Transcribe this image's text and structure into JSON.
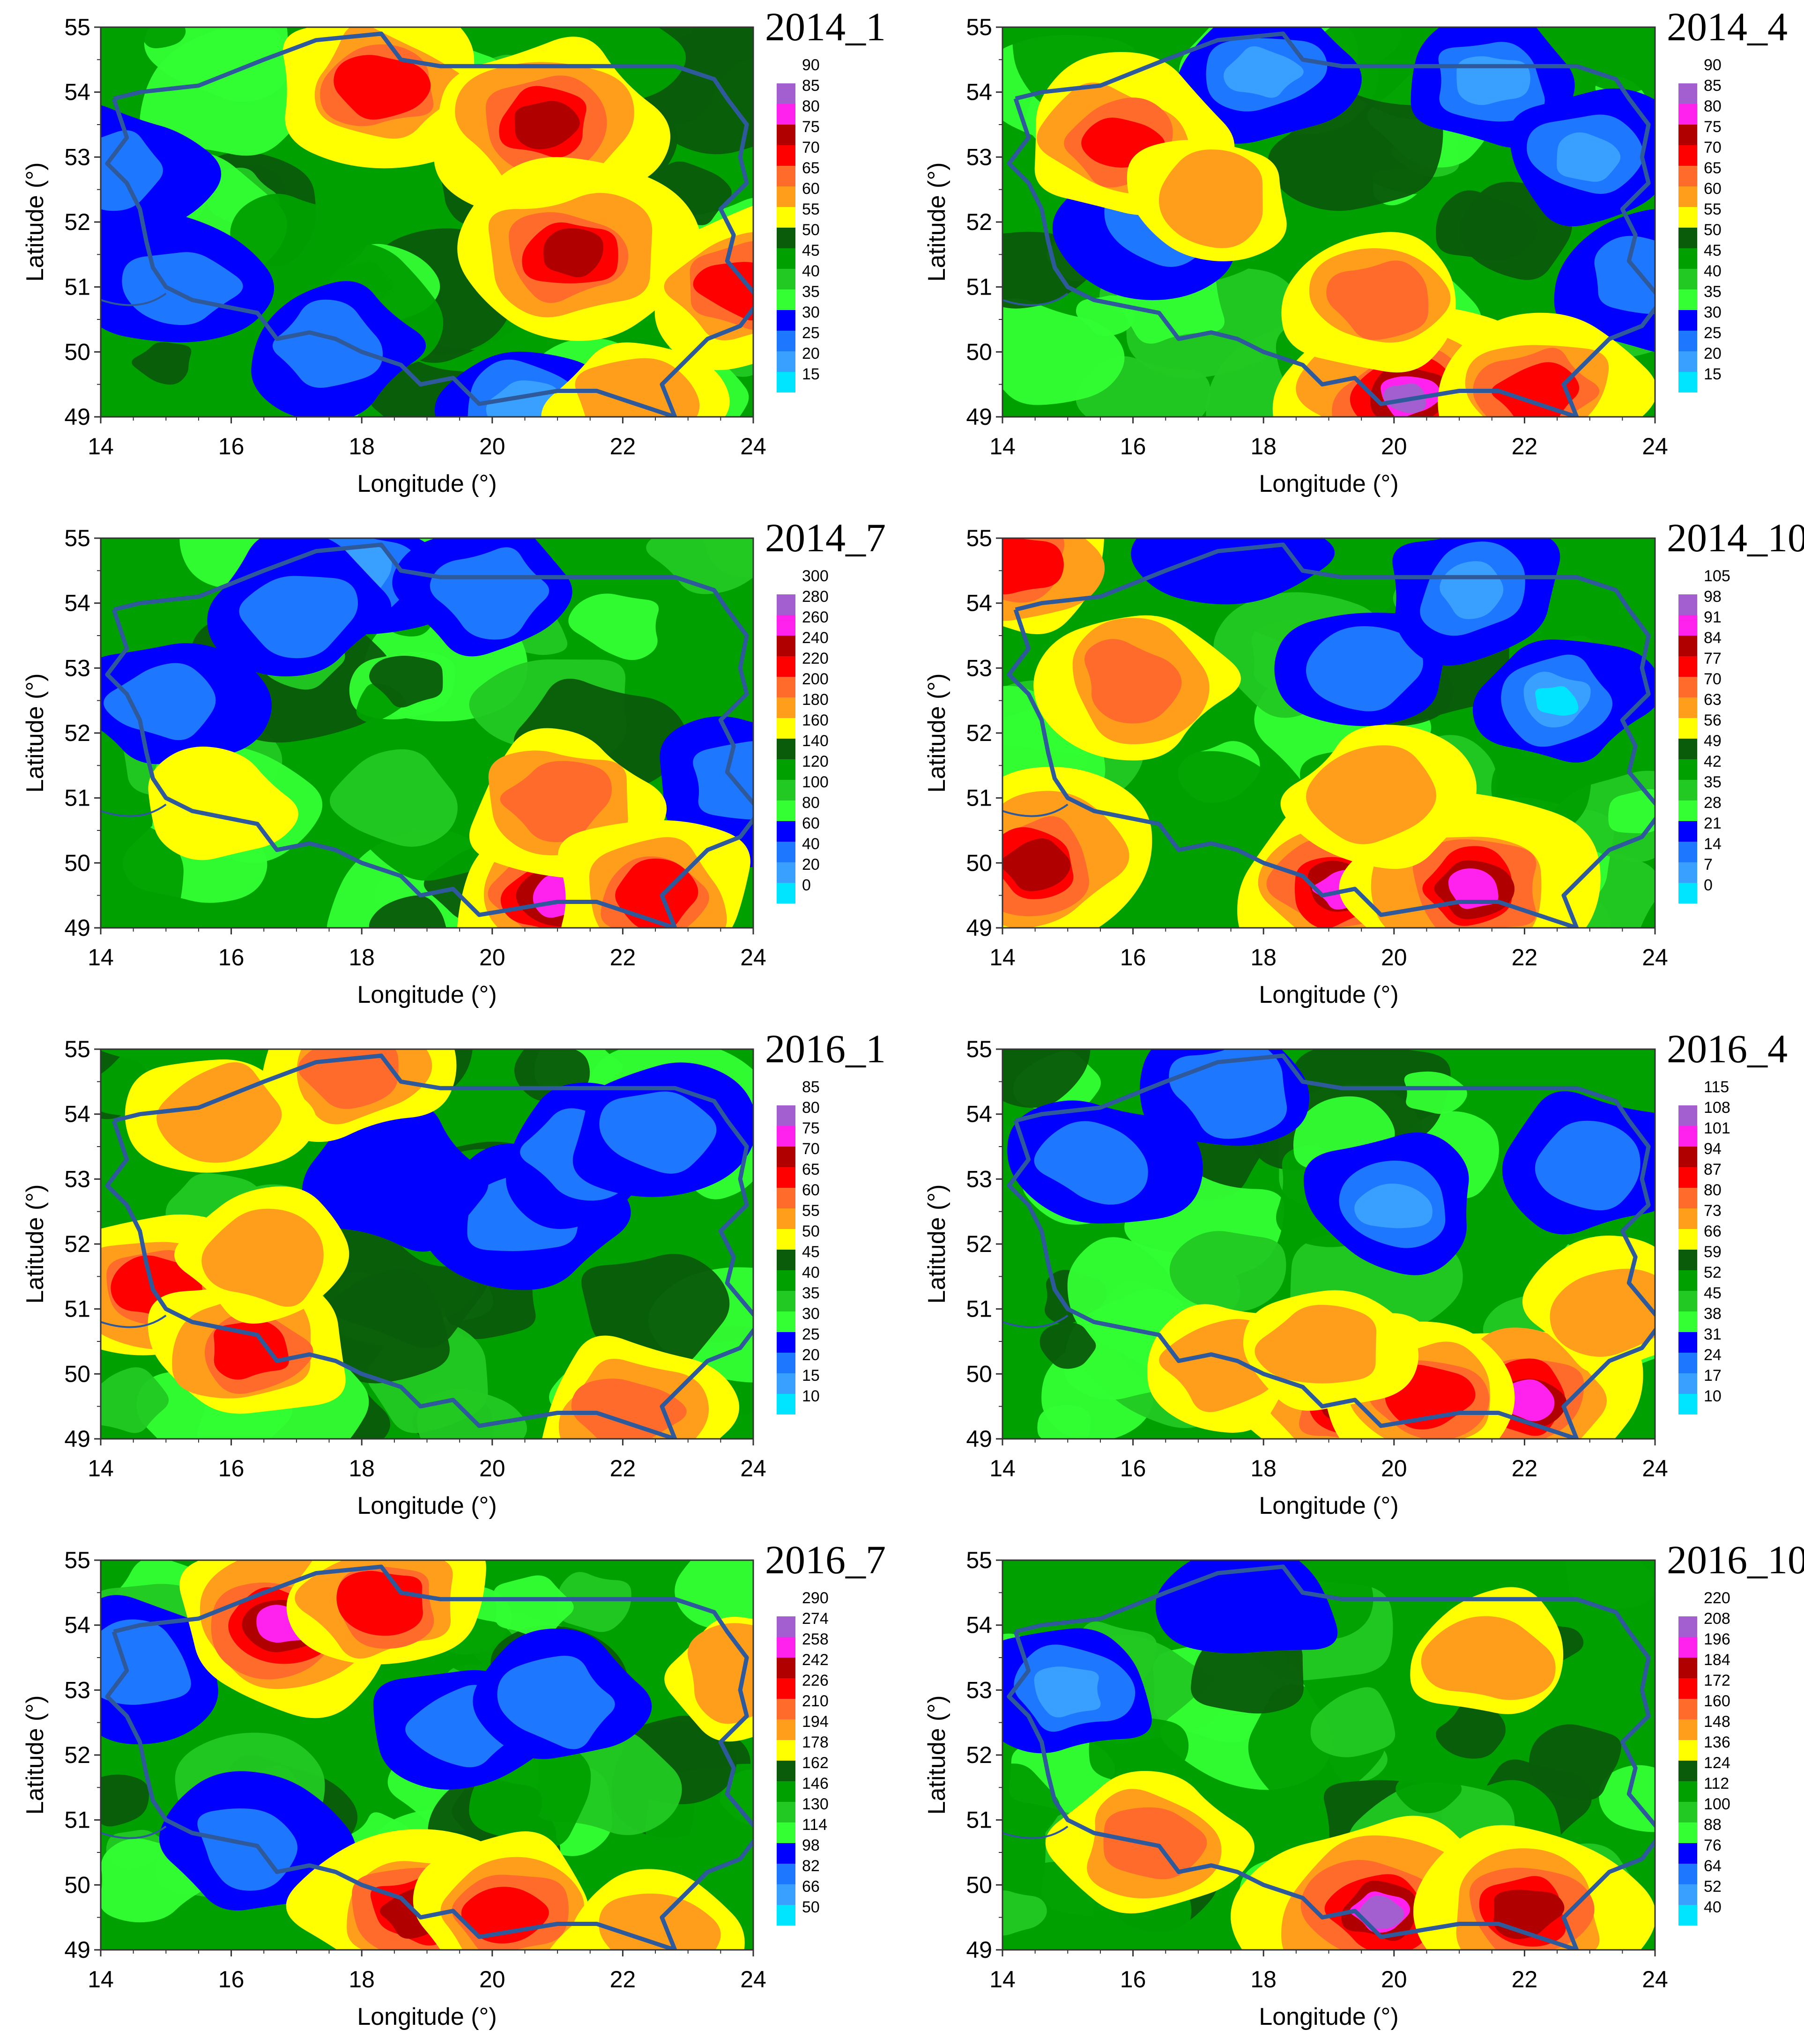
{
  "figure": {
    "panels": [
      {
        "id": "p1",
        "title": "2014_1",
        "legend_levels": [
          "90",
          "85",
          "80",
          "75",
          "70",
          "65",
          "60",
          "55",
          "50",
          "45",
          "40",
          "35",
          "30",
          "25",
          "20",
          "15"
        ],
        "hotspots": [
          [
            18.3,
            54.1,
            7
          ],
          [
            20.8,
            53.5,
            8
          ],
          [
            21.2,
            51.5,
            8
          ],
          [
            23.8,
            51.0,
            7
          ],
          [
            22.2,
            49.1,
            5
          ]
        ],
        "coldspots": [
          [
            15.2,
            51.0,
            2
          ],
          [
            17.5,
            50.1,
            2
          ],
          [
            20.5,
            49.2,
            1
          ],
          [
            14.2,
            52.8,
            2
          ]
        ]
      },
      {
        "id": "p2",
        "title": "2014_4",
        "legend_levels": [
          "90",
          "85",
          "80",
          "75",
          "70",
          "65",
          "60",
          "55",
          "50",
          "45",
          "40",
          "35",
          "30",
          "25",
          "20",
          "15"
        ],
        "hotspots": [
          [
            15.8,
            53.2,
            7
          ],
          [
            20.2,
            49.3,
            10
          ],
          [
            22.2,
            49.4,
            7
          ],
          [
            19.8,
            50.8,
            6
          ],
          [
            17.2,
            52.4,
            5
          ]
        ],
        "coldspots": [
          [
            18.0,
            54.3,
            1
          ],
          [
            21.5,
            54.2,
            1
          ],
          [
            23.0,
            53.0,
            1
          ],
          [
            16.3,
            52.0,
            2
          ],
          [
            23.8,
            51.1,
            2
          ]
        ]
      },
      {
        "id": "p3",
        "title": "2014_7",
        "legend_levels": [
          "300",
          "280",
          "260",
          "240",
          "220",
          "200",
          "180",
          "160",
          "140",
          "120",
          "100",
          "80",
          "60",
          "40",
          "20",
          "0"
        ],
        "hotspots": [
          [
            21.0,
            49.5,
            9
          ],
          [
            21.0,
            51.0,
            6
          ],
          [
            22.5,
            49.5,
            7
          ],
          [
            15.8,
            50.8,
            4
          ]
        ],
        "coldspots": [
          [
            18.0,
            54.5,
            1
          ],
          [
            20.0,
            54.2,
            2
          ],
          [
            17.0,
            53.9,
            2
          ],
          [
            15.0,
            52.5,
            2
          ],
          [
            23.9,
            51.2,
            2
          ]
        ]
      },
      {
        "id": "p4",
        "title": "2014_10",
        "legend_levels": [
          "105",
          "98",
          "91",
          "84",
          "77",
          "70",
          "63",
          "56",
          "49",
          "42",
          "35",
          "28",
          "21",
          "14",
          "7",
          "0"
        ],
        "hotspots": [
          [
            14.2,
            54.6,
            7
          ],
          [
            14.5,
            50.0,
            8
          ],
          [
            19.2,
            49.6,
            9
          ],
          [
            21.2,
            49.6,
            9
          ],
          [
            16.0,
            52.8,
            6
          ],
          [
            19.8,
            51.0,
            5
          ]
        ],
        "coldspots": [
          [
            22.5,
            52.5,
            0
          ],
          [
            19.5,
            53.0,
            2
          ],
          [
            21.2,
            54.2,
            1
          ],
          [
            17.5,
            54.8,
            3
          ]
        ]
      },
      {
        "id": "p5",
        "title": "2016_1",
        "legend_levels": [
          "85",
          "80",
          "75",
          "70",
          "65",
          "60",
          "55",
          "50",
          "45",
          "40",
          "35",
          "30",
          "25",
          "20",
          "15",
          "10"
        ],
        "hotspots": [
          [
            14.9,
            51.3,
            7
          ],
          [
            16.3,
            50.4,
            7
          ],
          [
            17.9,
            54.7,
            6
          ],
          [
            22.1,
            49.4,
            6
          ],
          [
            15.8,
            54.0,
            5
          ],
          [
            16.6,
            51.8,
            5
          ]
        ],
        "coldspots": [
          [
            20.5,
            52.4,
            2
          ],
          [
            21.4,
            53.4,
            2
          ],
          [
            22.5,
            53.8,
            2
          ],
          [
            18.5,
            53.0,
            3
          ]
        ]
      },
      {
        "id": "p6",
        "title": "2016_4",
        "legend_levels": [
          "115",
          "108",
          "101",
          "94",
          "87",
          "80",
          "73",
          "66",
          "59",
          "52",
          "45",
          "38",
          "31",
          "24",
          "17",
          "10"
        ],
        "hotspots": [
          [
            19.5,
            49.6,
            9
          ],
          [
            22.0,
            49.6,
            9
          ],
          [
            20.5,
            49.6,
            7
          ],
          [
            17.4,
            50.2,
            5
          ],
          [
            18.9,
            50.4,
            5
          ],
          [
            23.5,
            51.0,
            5
          ]
        ],
        "coldspots": [
          [
            20.0,
            52.6,
            1
          ],
          [
            17.5,
            54.4,
            2
          ],
          [
            15.5,
            53.2,
            2
          ],
          [
            23.0,
            53.2,
            2
          ]
        ]
      },
      {
        "id": "p7",
        "title": "2016_7",
        "legend_levels": [
          "290",
          "274",
          "258",
          "242",
          "226",
          "210",
          "194",
          "178",
          "162",
          "146",
          "130",
          "114",
          "98",
          "82",
          "66",
          "50"
        ],
        "hotspots": [
          [
            16.8,
            54.0,
            9
          ],
          [
            18.3,
            54.4,
            7
          ],
          [
            18.8,
            49.6,
            8
          ],
          [
            20.2,
            49.6,
            7
          ],
          [
            22.5,
            49.3,
            5
          ],
          [
            23.9,
            53.2,
            5
          ]
        ],
        "coldspots": [
          [
            14.6,
            53.4,
            2
          ],
          [
            16.3,
            50.6,
            2
          ],
          [
            19.5,
            52.4,
            2
          ],
          [
            21.0,
            52.8,
            2
          ]
        ]
      },
      {
        "id": "p8",
        "title": "2016_10",
        "legend_levels": [
          "220",
          "208",
          "196",
          "184",
          "172",
          "160",
          "148",
          "136",
          "124",
          "112",
          "100",
          "88",
          "76",
          "64",
          "52",
          "40"
        ],
        "hotspots": [
          [
            19.8,
            49.6,
            10
          ],
          [
            22.0,
            49.6,
            8
          ],
          [
            16.3,
            50.7,
            6
          ],
          [
            21.5,
            53.5,
            5
          ]
        ],
        "coldspots": [
          [
            15.0,
            53.0,
            1
          ],
          [
            17.8,
            54.4,
            3
          ]
        ]
      }
    ],
    "x_ticks": [
      "14",
      "16",
      "18",
      "20",
      "22",
      "24"
    ],
    "y_ticks": [
      "55",
      "54",
      "53",
      "52",
      "51",
      "50",
      "49"
    ],
    "xlabel": "Longitude (°)",
    "ylabel": "Latitude (°)"
  },
  "chart_data": {
    "type": "heatmap",
    "panels": [
      "2014_1",
      "2014_4",
      "2014_7",
      "2014_10",
      "2016_1",
      "2016_4",
      "2016_7",
      "2016_10"
    ],
    "xlabel": "Longitude (°)",
    "ylabel": "Latitude (°)",
    "xlim": [
      14,
      24
    ],
    "ylim": [
      49,
      55
    ],
    "colors": [
      "#a35fd0",
      "#ff22ee",
      "#b00000",
      "#ff0000",
      "#ff6b2a",
      "#ff9e1a",
      "#ffff00",
      "#0a5c0a",
      "#00a000",
      "#22c922",
      "#33ff33",
      "#0000ff",
      "#1e78ff",
      "#3aa0ff",
      "#00e5ff"
    ]
  }
}
